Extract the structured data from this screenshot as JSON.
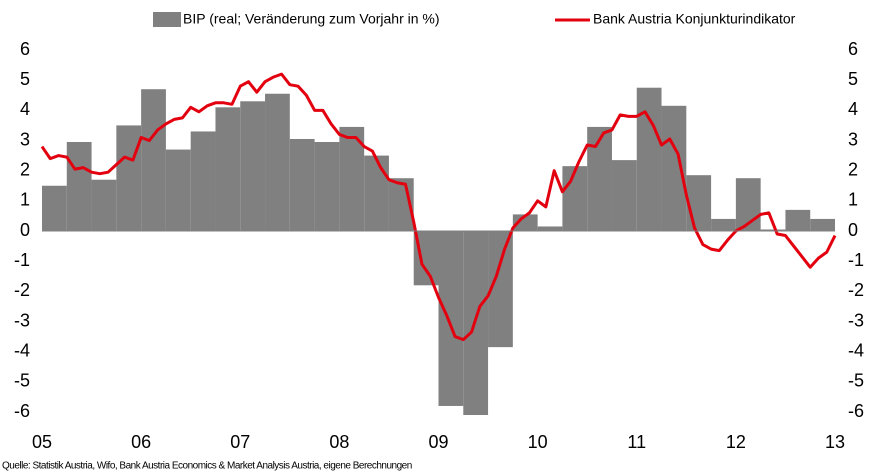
{
  "chart_data": {
    "type": "bar-line",
    "source": "Quelle: Statistik Austria, Wifo, Bank Austria Economics & Market Analysis Austria, eigene Berechnungen",
    "xlim": [
      2005,
      2013
    ],
    "xticks": [
      {
        "value": 2005,
        "label": "05"
      },
      {
        "value": 2006,
        "label": "06"
      },
      {
        "value": 2007,
        "label": "07"
      },
      {
        "value": 2008,
        "label": "08"
      },
      {
        "value": 2009,
        "label": "09"
      },
      {
        "value": 2010,
        "label": "10"
      },
      {
        "value": 2011,
        "label": "11"
      },
      {
        "value": 2012,
        "label": "12"
      },
      {
        "value": 2013,
        "label": "13"
      }
    ],
    "ylim": [
      -6,
      6
    ],
    "yticks": [
      -6,
      -5,
      -4,
      -3,
      -2,
      -1,
      0,
      1,
      2,
      3,
      4,
      5,
      6
    ],
    "y2lim": [
      -6,
      6
    ],
    "y2ticks": [
      -6,
      -5,
      -4,
      -3,
      -2,
      -1,
      0,
      1,
      2,
      3,
      4,
      5,
      6
    ],
    "series": [
      {
        "name": "BIP (real; Veränderung zum Vorjahr in %)",
        "type": "bar",
        "color": "#808080",
        "x": [
          2005.125,
          2005.375,
          2005.625,
          2005.875,
          2006.125,
          2006.375,
          2006.625,
          2006.875,
          2007.125,
          2007.375,
          2007.625,
          2007.875,
          2008.125,
          2008.375,
          2008.625,
          2008.875,
          2009.125,
          2009.375,
          2009.625,
          2009.875,
          2010.125,
          2010.375,
          2010.625,
          2010.875,
          2011.125,
          2011.375,
          2011.625,
          2011.875,
          2012.125,
          2012.375,
          2012.625,
          2012.875
        ],
        "values": [
          1.5,
          2.95,
          1.7,
          3.5,
          4.7,
          2.7,
          3.3,
          4.1,
          4.3,
          4.55,
          3.05,
          2.95,
          3.45,
          2.5,
          1.75,
          -1.8,
          -5.8,
          -6.1,
          -3.85,
          0.55,
          0.15,
          2.15,
          3.45,
          2.35,
          4.75,
          4.15,
          1.85,
          0.4,
          1.75,
          0.05,
          0.7,
          0.4
        ]
      },
      {
        "name": "Bank Austria Konjunkturindikator",
        "type": "line",
        "color": "#e3000f",
        "axis": "y2",
        "x": [
          2005,
          2005.083,
          2005.167,
          2005.25,
          2005.333,
          2005.417,
          2005.5,
          2005.583,
          2005.667,
          2005.75,
          2005.833,
          2005.917,
          2006,
          2006.083,
          2006.167,
          2006.25,
          2006.333,
          2006.417,
          2006.5,
          2006.583,
          2006.667,
          2006.75,
          2006.833,
          2006.917,
          2007,
          2007.083,
          2007.167,
          2007.25,
          2007.333,
          2007.417,
          2007.5,
          2007.583,
          2007.667,
          2007.75,
          2007.833,
          2007.917,
          2008,
          2008.083,
          2008.167,
          2008.25,
          2008.333,
          2008.417,
          2008.5,
          2008.583,
          2008.667,
          2008.75,
          2008.833,
          2008.917,
          2009,
          2009.083,
          2009.167,
          2009.25,
          2009.333,
          2009.417,
          2009.5,
          2009.583,
          2009.667,
          2009.75,
          2009.833,
          2009.917,
          2010,
          2010.083,
          2010.167,
          2010.25,
          2010.333,
          2010.417,
          2010.5,
          2010.583,
          2010.667,
          2010.75,
          2010.833,
          2010.917,
          2011,
          2011.083,
          2011.167,
          2011.25,
          2011.333,
          2011.417,
          2011.5,
          2011.583,
          2011.667,
          2011.75,
          2011.833,
          2011.917,
          2012,
          2012.083,
          2012.167,
          2012.25,
          2012.333,
          2012.417,
          2012.5,
          2012.583,
          2012.667,
          2012.75,
          2012.833,
          2012.917,
          2013
        ],
        "values": [
          2.8,
          2.4,
          2.5,
          2.45,
          2.05,
          2.1,
          1.95,
          1.9,
          1.95,
          2.2,
          2.45,
          2.35,
          3.1,
          3.0,
          3.35,
          3.55,
          3.7,
          3.75,
          4.1,
          3.95,
          4.15,
          4.25,
          4.25,
          4.2,
          4.8,
          4.95,
          4.6,
          4.95,
          5.1,
          5.2,
          4.85,
          4.8,
          4.5,
          4.0,
          4.0,
          3.55,
          3.2,
          3.1,
          3.1,
          2.8,
          2.65,
          2.1,
          1.7,
          1.6,
          1.55,
          0.3,
          -1.1,
          -1.5,
          -2.2,
          -2.8,
          -3.5,
          -3.6,
          -3.35,
          -2.5,
          -2.15,
          -1.5,
          -0.6,
          0.1,
          0.4,
          0.6,
          1.0,
          0.8,
          2.0,
          1.3,
          1.65,
          2.3,
          2.85,
          2.8,
          3.25,
          3.35,
          3.85,
          3.8,
          3.8,
          3.95,
          3.5,
          2.85,
          3.05,
          2.55,
          1.2,
          0.1,
          -0.45,
          -0.6,
          -0.65,
          -0.3,
          0,
          0.15,
          0.35,
          0.55,
          0.6,
          -0.1,
          -0.15,
          -0.5,
          -0.85,
          -1.2,
          -0.9,
          -0.7,
          -0.15
        ]
      }
    ]
  }
}
